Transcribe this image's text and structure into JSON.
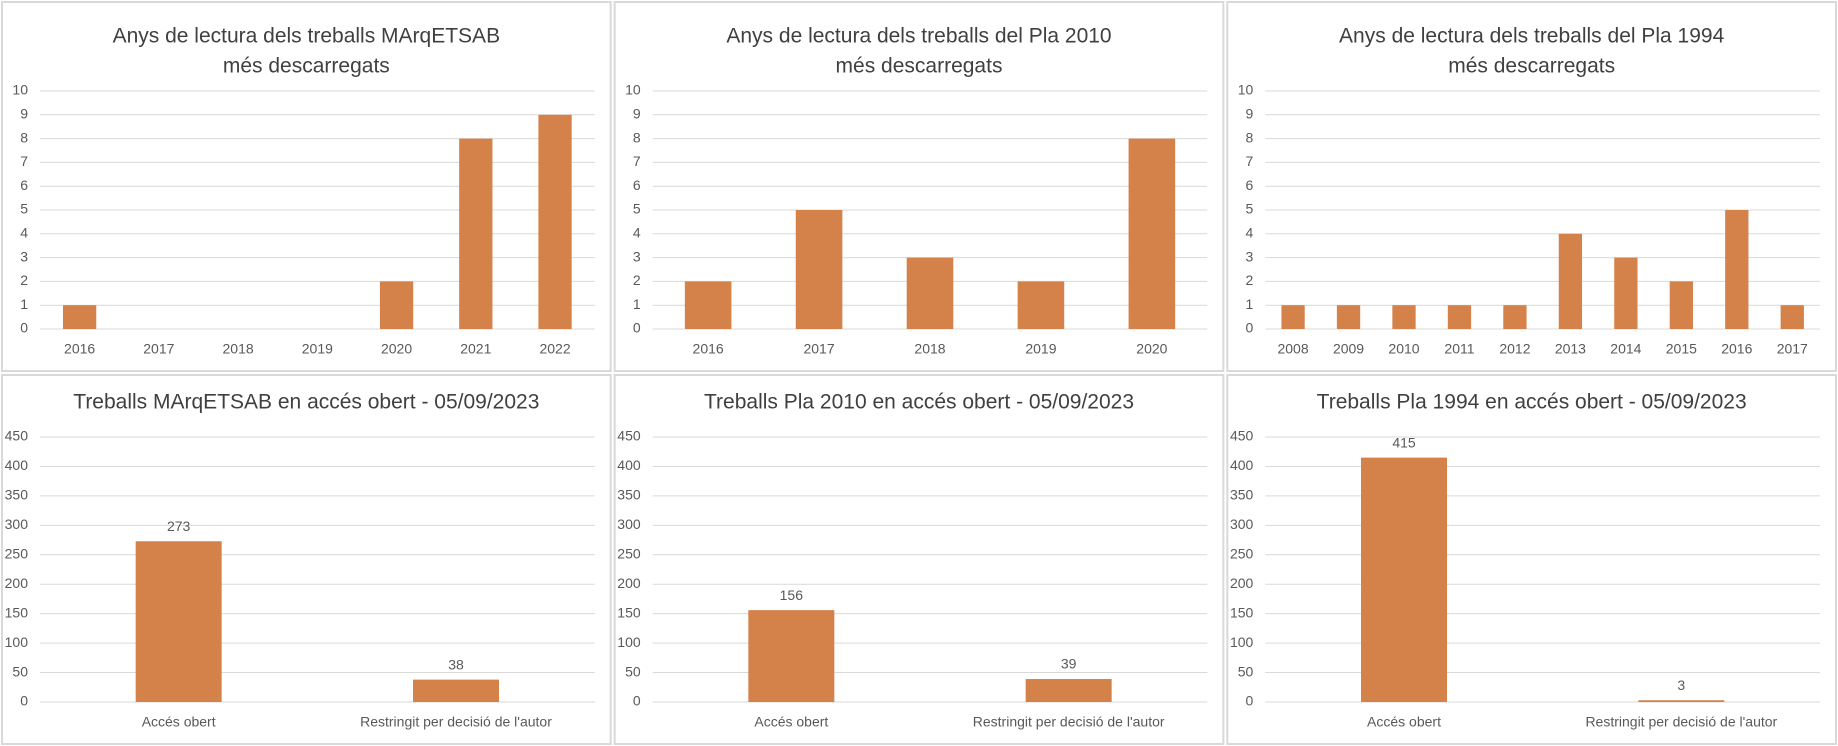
{
  "chart_data": [
    {
      "type": "bar",
      "title": [
        "Anys de lectura dels treballs MArqETSAB",
        "més descarregats"
      ],
      "categories": [
        "2016",
        "2017",
        "2018",
        "2019",
        "2020",
        "2021",
        "2022"
      ],
      "values": [
        1,
        0,
        0,
        0,
        2,
        8,
        9
      ],
      "color": "#d4824a",
      "ylim": [
        0,
        10
      ],
      "yticks": [
        0,
        1,
        2,
        3,
        4,
        5,
        6,
        7,
        8,
        9,
        10
      ],
      "grid": true
    },
    {
      "type": "bar",
      "title": [
        "Anys de lectura dels treballs del Pla 2010",
        "més descarregats"
      ],
      "categories": [
        "2016",
        "2017",
        "2018",
        "2019",
        "2020"
      ],
      "values": [
        2,
        5,
        3,
        2,
        8
      ],
      "color": "#d4824a",
      "ylim": [
        0,
        10
      ],
      "yticks": [
        0,
        1,
        2,
        3,
        4,
        5,
        6,
        7,
        8,
        9,
        10
      ],
      "grid": true
    },
    {
      "type": "bar",
      "title": [
        "Anys de lectura dels treballs del Pla 1994",
        "més descarregats"
      ],
      "categories": [
        "2008",
        "2009",
        "2010",
        "2011",
        "2012",
        "2013",
        "2014",
        "2015",
        "2016",
        "2017"
      ],
      "values": [
        1,
        1,
        1,
        1,
        1,
        4,
        3,
        2,
        5,
        1
      ],
      "color": "#d4824a",
      "ylim": [
        0,
        10
      ],
      "yticks": [
        0,
        1,
        2,
        3,
        4,
        5,
        6,
        7,
        8,
        9,
        10
      ],
      "grid": true
    },
    {
      "type": "bar",
      "title": [
        "Treballs MArqETSAB en accés obert - 05/09/2023"
      ],
      "categories": [
        "Accés obert",
        "Restringit per decisió de l'autor"
      ],
      "values": [
        273,
        38
      ],
      "color": "#d4824a",
      "ylim": [
        0,
        450
      ],
      "yticks": [
        0,
        50,
        100,
        150,
        200,
        250,
        300,
        350,
        400,
        450
      ],
      "grid": true,
      "data_labels": true
    },
    {
      "type": "bar",
      "title": [
        "Treballs Pla 2010 en accés obert - 05/09/2023"
      ],
      "categories": [
        "Accés obert",
        "Restringit per decisió de l'autor"
      ],
      "values": [
        156,
        39
      ],
      "color": "#d4824a",
      "ylim": [
        0,
        450
      ],
      "yticks": [
        0,
        50,
        100,
        150,
        200,
        250,
        300,
        350,
        400,
        450
      ],
      "grid": true,
      "data_labels": true
    },
    {
      "type": "bar",
      "title": [
        "Treballs Pla 1994 en accés obert - 05/09/2023"
      ],
      "categories": [
        "Accés obert",
        "Restringit per decisió de l'autor"
      ],
      "values": [
        415,
        3
      ],
      "color": "#d4824a",
      "ylim": [
        0,
        450
      ],
      "yticks": [
        0,
        50,
        100,
        150,
        200,
        250,
        300,
        350,
        400,
        450
      ],
      "grid": true,
      "data_labels": true
    }
  ]
}
